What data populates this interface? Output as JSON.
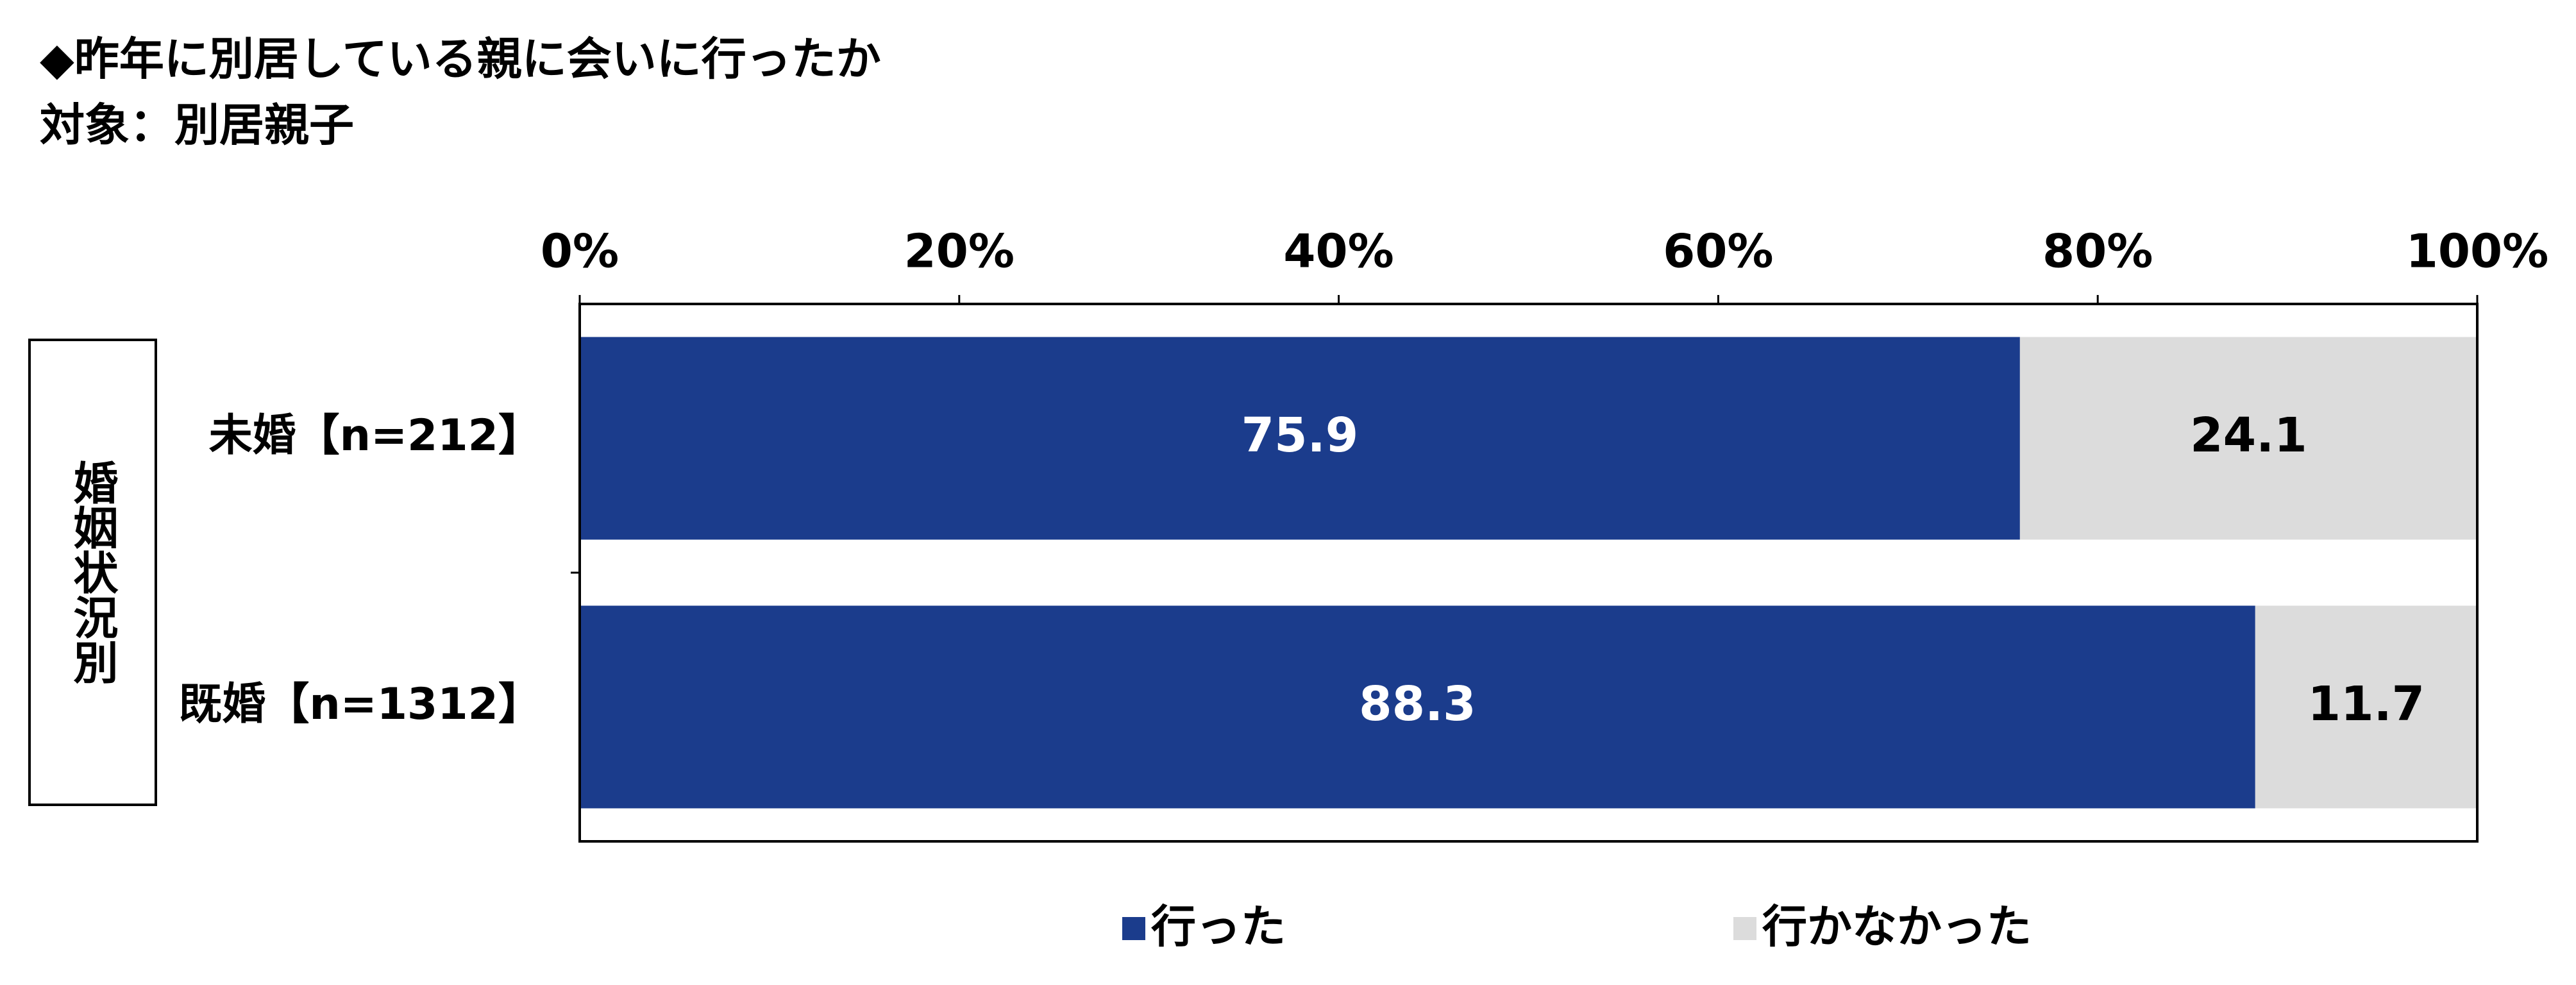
{
  "chart_data": {
    "type": "stacked-bar",
    "orientation": "horizontal",
    "title": "◆昨年に別居している親に会いに行ったか",
    "subtitle": "対象：別居親子",
    "y_label": "婚姻状況別",
    "categories": [
      "未婚【n=212】",
      "既婚【n=1312】"
    ],
    "series": [
      {
        "name": "行った",
        "color": "#1b3c8c",
        "values": [
          75.9,
          88.3
        ]
      },
      {
        "name": "行かなかった",
        "color": "#dcdcdc",
        "values": [
          24.1,
          11.7
        ]
      }
    ],
    "xlim": [
      0,
      100
    ],
    "xticks": [
      {
        "value": 0,
        "label": "0%"
      },
      {
        "value": 20,
        "label": "20%"
      },
      {
        "value": 40,
        "label": "40%"
      },
      {
        "value": 60,
        "label": "60%"
      },
      {
        "value": 80,
        "label": "80%"
      },
      {
        "value": 100,
        "label": "100%"
      }
    ],
    "legend": "bottom"
  }
}
